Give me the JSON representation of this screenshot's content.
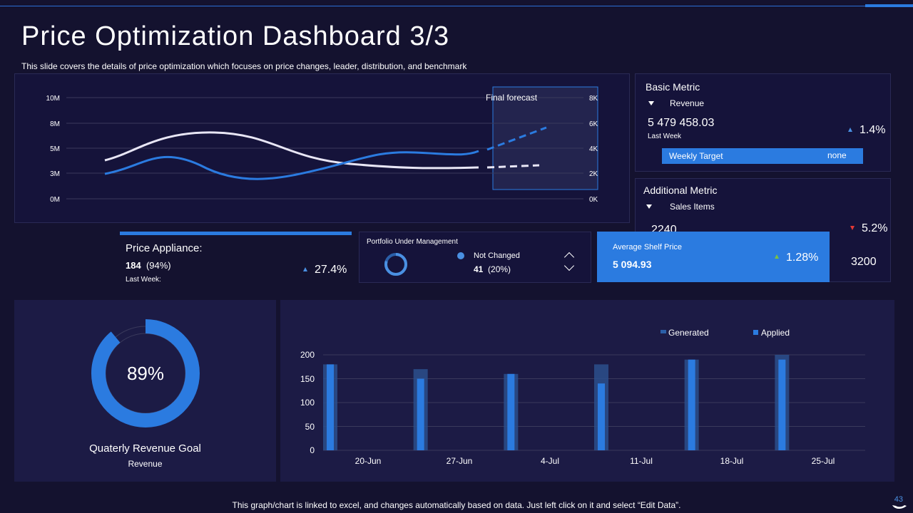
{
  "header": {
    "title": "Price Optimization Dashboard 3/3",
    "subtitle": "This slide covers the details of price optimization which focuses on price changes, leader, distribution, and benchmark"
  },
  "line_chart": {
    "forecast_label": "Final forecast",
    "left_ticks": [
      "10M",
      "8M",
      "5M",
      "3M",
      "0M"
    ],
    "right_ticks": [
      "8K",
      "6K",
      "4K",
      "2K",
      "0K"
    ]
  },
  "basic_metric": {
    "title": "Basic Metric",
    "dropdown": "Revenue",
    "value": "5 479 458.03",
    "period": "Last Week",
    "change": "1.4%",
    "target_label": "Weekly Target",
    "target_value": "none"
  },
  "additional_metric": {
    "title": "Additional Metric",
    "dropdown": "Sales Items",
    "value": "2240",
    "change": "5.2%",
    "target_value": "3200"
  },
  "price_appliance": {
    "title": "Price Appliance:",
    "value": "184",
    "value_pct": "(94%)",
    "period": "Last Week:",
    "change": "27.4%"
  },
  "portfolio": {
    "title": "Portfolio Under Management",
    "legend_label": "Not Changed",
    "value": "41",
    "value_pct": "(20%)",
    "ring_fraction": 0.2
  },
  "shelf_price": {
    "label": "Average Shelf Price",
    "value": "5 094.93",
    "change": "1.28%"
  },
  "donut": {
    "center_label": "89%",
    "fraction": 0.89,
    "title": "Quaterly Revenue Goal",
    "subtitle": "Revenue"
  },
  "chart_data": {
    "type": "bar",
    "categories": [
      "20-Jun",
      "27-Jun",
      "4-Jul",
      "11-Jul",
      "18-Jul",
      "25-Jul"
    ],
    "series": [
      {
        "name": "Generated",
        "values": [
          180,
          170,
          160,
          180,
          190,
          200
        ]
      },
      {
        "name": "Applied",
        "values": [
          180,
          150,
          160,
          140,
          190,
          190
        ]
      }
    ],
    "yticks": [
      "200",
      "150",
      "100",
      "50",
      "0"
    ],
    "ylim": [
      0,
      200
    ],
    "legend_position": "top-right"
  },
  "footer": {
    "note": "This graph/chart is linked to excel,  and changes automatically based on data. Just left click on it and select “Edit Data”.",
    "page": "43"
  },
  "colors": {
    "background": "#14122f",
    "accent": "#2b7be0",
    "panel": "#1c1b45"
  }
}
